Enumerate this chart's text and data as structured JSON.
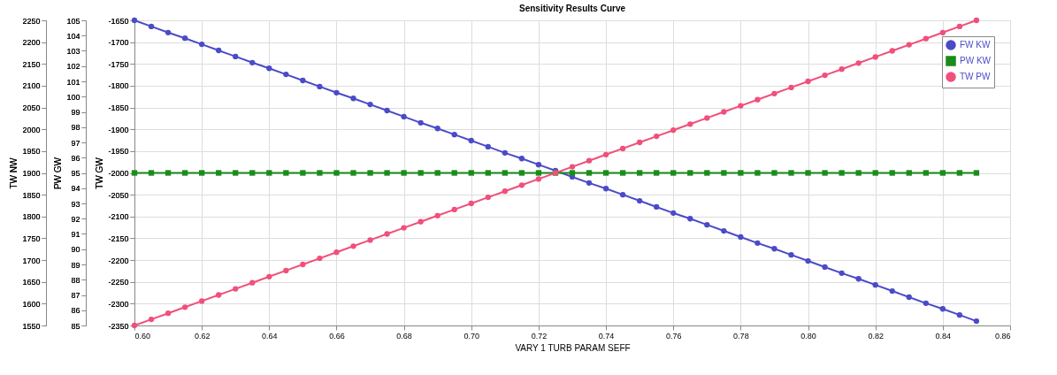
{
  "chart_data": {
    "type": "line",
    "title": "Sensitivity Results Curve",
    "xlabel": "VARY  1 TURB PARAM SEFF",
    "ylabel": "TW GW",
    "y2label": "TW NW",
    "y3label": "PW GW",
    "x": [
      0.6,
      0.605,
      0.61,
      0.615,
      0.62,
      0.625,
      0.63,
      0.635,
      0.64,
      0.645,
      0.65,
      0.655,
      0.66,
      0.665,
      0.67,
      0.675,
      0.68,
      0.685,
      0.69,
      0.695,
      0.7,
      0.705,
      0.71,
      0.715,
      0.72,
      0.725,
      0.73,
      0.735,
      0.74,
      0.745,
      0.75,
      0.755,
      0.76,
      0.765,
      0.77,
      0.775,
      0.78,
      0.785,
      0.79,
      0.795,
      0.8,
      0.805,
      0.81,
      0.815,
      0.82,
      0.825,
      0.83,
      0.835,
      0.84,
      0.845,
      0.85
    ],
    "series": [
      {
        "name": "FW KW",
        "color": "#4b4bc8",
        "marker": "circle",
        "values": [
          -1650,
          -1664,
          -1678,
          -1691,
          -1705,
          -1719,
          -1733,
          -1747,
          -1760,
          -1774,
          -1788,
          -1802,
          -1816,
          -1829,
          -1843,
          -1857,
          -1871,
          -1885,
          -1898,
          -1912,
          -1926,
          -1940,
          -1954,
          -1967,
          -1981,
          -1995,
          -2009,
          -2023,
          -2036,
          -2050,
          -2064,
          -2078,
          -2092,
          -2105,
          -2119,
          -2133,
          -2147,
          -2161,
          -2174,
          -2188,
          -2202,
          -2216,
          -2230,
          -2243,
          -2257,
          -2271,
          -2285,
          -2299,
          -2312,
          -2326,
          -2340
        ]
      },
      {
        "name": "PW KW",
        "color": "#1a8c1a",
        "marker": "square",
        "axis": "y3",
        "values": [
          95,
          95,
          95,
          95,
          95,
          95,
          95,
          95,
          95,
          95,
          95,
          95,
          95,
          95,
          95,
          95,
          95,
          95,
          95,
          95,
          95,
          95,
          95,
          95,
          95,
          95,
          95,
          95,
          95,
          95,
          95,
          95,
          95,
          95,
          95,
          95,
          95,
          95,
          95,
          95,
          95,
          95,
          95,
          95,
          95,
          95,
          95,
          95,
          95,
          95,
          95
        ]
      },
      {
        "name": "TW PW",
        "color": "#f0507a",
        "marker": "circle",
        "axis": "y2",
        "values": [
          1550,
          1564,
          1578,
          1592,
          1606,
          1620,
          1634,
          1648,
          1662,
          1676,
          1690,
          1704,
          1718,
          1732,
          1746,
          1760,
          1774,
          1788,
          1802,
          1816,
          1830,
          1844,
          1858,
          1872,
          1886,
          1900,
          1914,
          1928,
          1942,
          1956,
          1970,
          1984,
          1998,
          2012,
          2026,
          2040,
          2054,
          2068,
          2082,
          2096,
          2110,
          2124,
          2138,
          2152,
          2166,
          2180,
          2194,
          2208,
          2222,
          2236,
          2250
        ]
      }
    ],
    "xlim": [
      0.6,
      0.86
    ],
    "xticks": [
      {
        "value": 0.6,
        "label": "0.60"
      },
      {
        "value": 0.62,
        "label": "0.62"
      },
      {
        "value": 0.64,
        "label": "0.64"
      },
      {
        "value": 0.66,
        "label": "0.66"
      },
      {
        "value": 0.68,
        "label": "0.68"
      },
      {
        "value": 0.7,
        "label": "0.70"
      },
      {
        "value": 0.72,
        "label": "0.72"
      },
      {
        "value": 0.74,
        "label": "0.74"
      },
      {
        "value": 0.76,
        "label": "0.76"
      },
      {
        "value": 0.78,
        "label": "0.78"
      },
      {
        "value": 0.8,
        "label": "0.80"
      },
      {
        "value": 0.82,
        "label": "0.82"
      },
      {
        "value": 0.84,
        "label": "0.84"
      },
      {
        "value": 0.86,
        "label": "0.86"
      }
    ],
    "ylim": [
      -2350,
      -1650
    ],
    "yticks": [
      -2350,
      -2300,
      -2250,
      -2200,
      -2150,
      -2100,
      -2050,
      -2000,
      -1950,
      -1900,
      -1850,
      -1800,
      -1750,
      -1700,
      -1650
    ],
    "y3lim": [
      85,
      105
    ],
    "y3ticks": [
      85,
      86,
      87,
      88,
      89,
      90,
      91,
      92,
      93,
      94,
      95,
      96,
      97,
      98,
      99,
      100,
      101,
      102,
      103,
      104,
      105
    ],
    "y2lim": [
      1550,
      2250
    ],
    "y2ticks": [
      1550,
      1600,
      1650,
      1700,
      1750,
      1800,
      1850,
      1900,
      1950,
      2000,
      2050,
      2100,
      2150,
      2200,
      2250
    ],
    "grid": true,
    "legend": "top right",
    "line_style": "solid"
  }
}
